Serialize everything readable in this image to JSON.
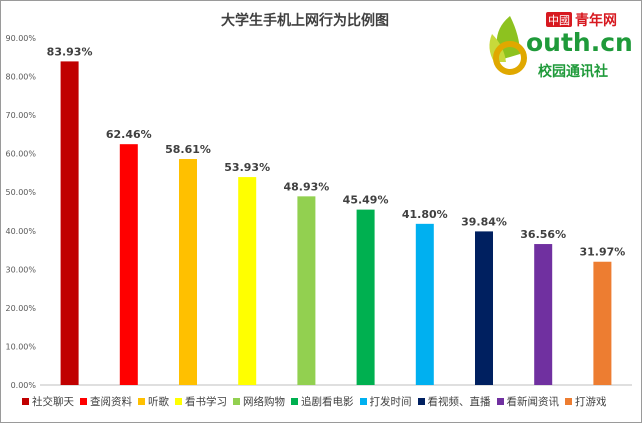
{
  "chart_data": {
    "type": "bar",
    "title": "大学生手机上网行为比例图",
    "categories": [
      "社交聊天",
      "查阅资料",
      "听歌",
      "看书学习",
      "网络购物",
      "追剧看电影",
      "打发时间",
      "看视频、直播",
      "看新闻资讯",
      "打游戏"
    ],
    "values": [
      83.93,
      62.46,
      58.61,
      53.93,
      48.93,
      45.49,
      41.8,
      39.84,
      36.56,
      31.97
    ],
    "value_labels": [
      "83.93%",
      "62.46%",
      "58.61%",
      "53.93%",
      "48.93%",
      "45.49%",
      "41.80%",
      "39.84%",
      "36.56%",
      "31.97%"
    ],
    "colors": [
      "#c00000",
      "#ff0000",
      "#ffc000",
      "#ffff00",
      "#92d050",
      "#00b050",
      "#00b0f0",
      "#002060",
      "#7030a0",
      "#ed7d31"
    ],
    "yticks": [
      "0.00%",
      "10.00%",
      "20.00%",
      "30.00%",
      "40.00%",
      "50.00%",
      "60.00%",
      "70.00%",
      "80.00%",
      "90.00%"
    ],
    "ylim": [
      0,
      90
    ],
    "grid": false,
    "legend_position": "bottom"
  },
  "logo": {
    "cn_badge": "中國",
    "brand": "青年网",
    "domain": "outh.cn",
    "tagline": "校园通讯社"
  }
}
